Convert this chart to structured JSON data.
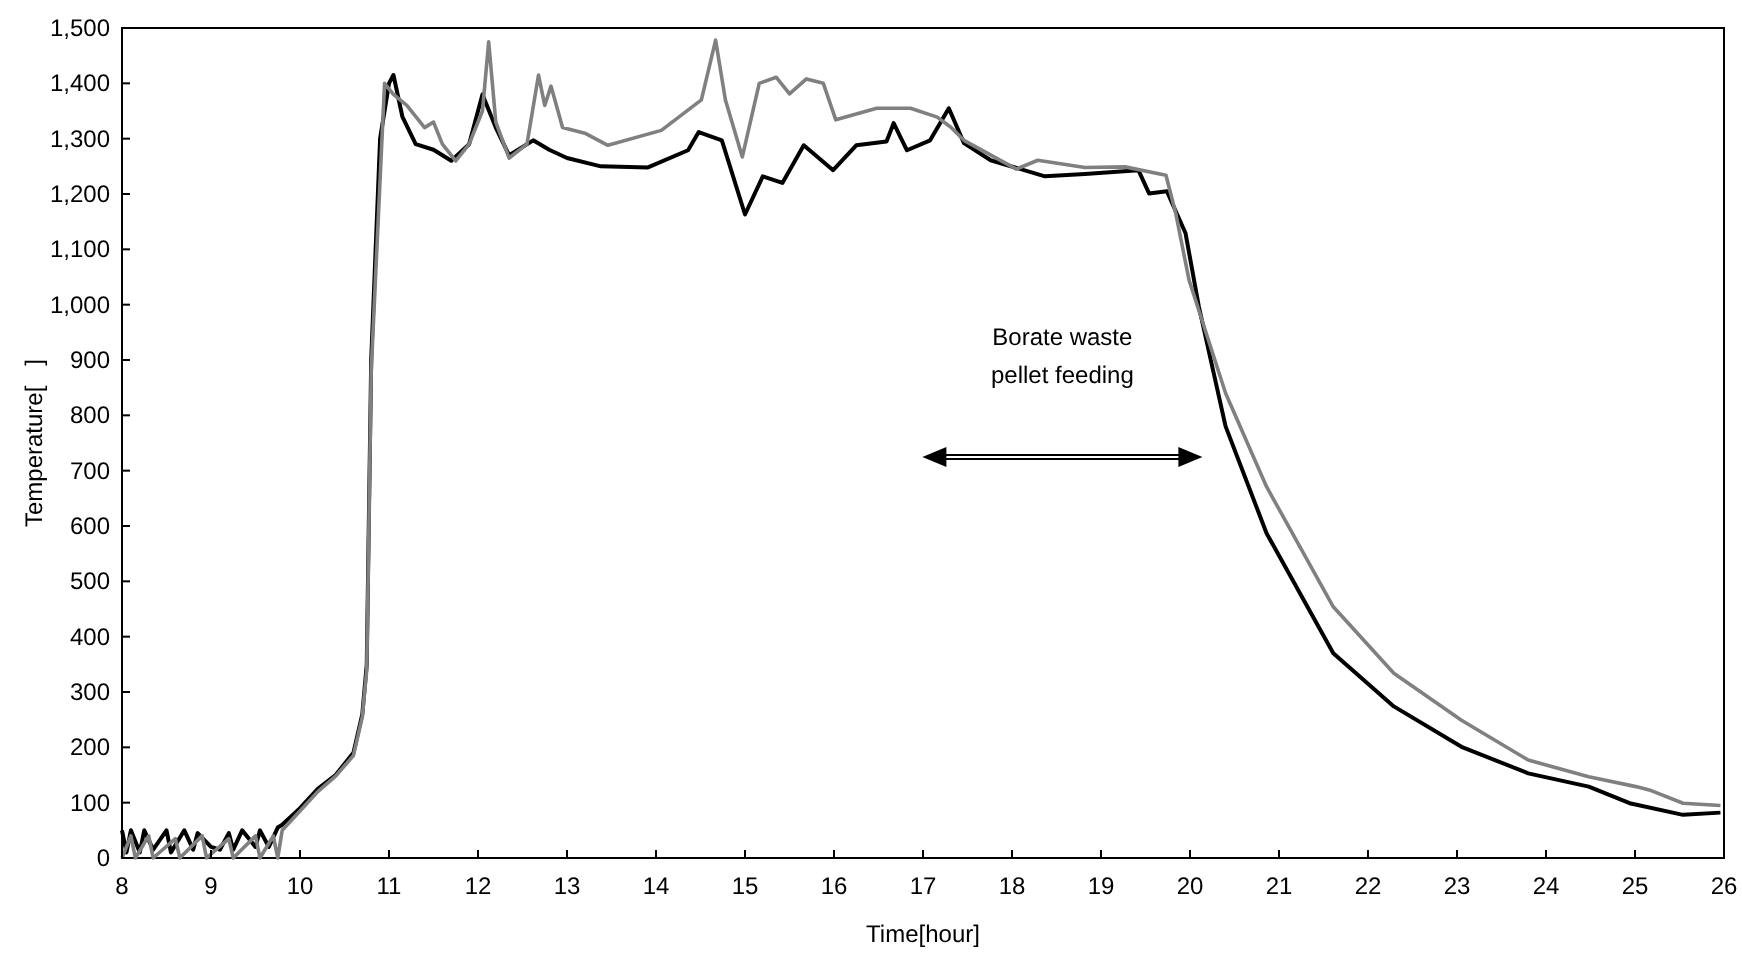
{
  "chart_data": {
    "type": "line",
    "xlabel": "Time[hour]",
    "ylabel": "Temperature[   ]",
    "xlim": [
      8,
      26
    ],
    "xticks": [
      8,
      9,
      10,
      11,
      12,
      13,
      14,
      15,
      16,
      17,
      18,
      19,
      20,
      21,
      22,
      23,
      24,
      25,
      26
    ],
    "ylim": [
      0,
      1500
    ],
    "yticks": [
      0,
      {
        "value": 100,
        "label": "100"
      },
      {
        "value": 200,
        "label": "200"
      },
      {
        "value": 300,
        "label": "300"
      },
      {
        "value": 400,
        "label": "400"
      },
      {
        "value": 500,
        "label": "500"
      },
      {
        "value": 600,
        "label": "600"
      },
      {
        "value": 700,
        "label": "700"
      },
      {
        "value": 800,
        "label": "800"
      },
      {
        "value": 900,
        "label": "900"
      },
      {
        "value": 1000,
        "label": "1,000"
      },
      {
        "value": 1100,
        "label": "1,100"
      },
      {
        "value": 1200,
        "label": "1,200"
      },
      {
        "value": 1300,
        "label": "1,300"
      },
      {
        "value": 1400,
        "label": "1,400"
      },
      {
        "value": 1500,
        "label": "1,500"
      }
    ],
    "grid": false,
    "line_style": "solid",
    "annotations": [
      "Borate waste\npellet feeding"
    ],
    "series": [
      {
        "color": "#000000",
        "x": [
          8,
          8.05,
          8.1,
          8.2,
          8.25,
          8.35,
          8.5,
          8.55,
          8.7,
          8.8,
          8.85,
          9,
          9.1,
          9.2,
          9.25,
          9.35,
          9.5,
          9.55,
          9.65,
          9.75,
          9.8,
          10,
          10.2,
          10.4,
          10.6,
          10.7,
          10.75,
          10.8,
          10.9,
          11,
          11.05,
          11.15,
          11.3,
          11.5,
          11.7,
          11.9,
          12.05,
          12.2,
          12.35,
          12.62,
          12.8,
          13,
          13.38,
          13.91,
          14.36,
          14.48,
          14.74,
          15,
          15.2,
          15.42,
          15.66,
          15.99,
          16.25,
          16.59,
          16.67,
          16.82,
          17.08,
          17.29,
          17.46,
          17.76,
          18.37,
          18.82,
          19.42,
          19.54,
          19.74,
          19.95,
          20.1,
          20.4,
          20.86,
          21.61,
          22.29,
          23.05,
          23.8,
          24.48,
          24.94,
          25.54,
          25.96
        ],
        "values": [
          50,
          10,
          50,
          10,
          50,
          15,
          50,
          10,
          50,
          15,
          45,
          20,
          15,
          45,
          15,
          50,
          20,
          50,
          20,
          55,
          60,
          90,
          125,
          150,
          190,
          260,
          350,
          900,
          1300,
          1400,
          1415,
          1340,
          1290,
          1280,
          1260,
          1290,
          1380,
          1320,
          1270,
          1297,
          1280,
          1265,
          1250,
          1248,
          1279,
          1312,
          1297,
          1163,
          1232,
          1220,
          1288,
          1243,
          1288,
          1295,
          1328,
          1279,
          1297,
          1355,
          1292,
          1261,
          1232,
          1236,
          1243,
          1201,
          1205,
          1129,
          996,
          780,
          587,
          370,
          274,
          201,
          153,
          129,
          99,
          78,
          82
        ]
      },
      {
        "color": "#808080",
        "x": [
          8,
          8.1,
          8.15,
          8.3,
          8.35,
          8.6,
          8.65,
          8.9,
          8.95,
          9.2,
          9.25,
          9.5,
          9.55,
          9.7,
          9.75,
          9.8,
          10,
          10.2,
          10.4,
          10.6,
          10.7,
          10.75,
          10.8,
          10.95,
          11.05,
          11.2,
          11.4,
          11.5,
          11.6,
          11.75,
          11.9,
          12.05,
          12.12,
          12.2,
          12.35,
          12.55,
          12.68,
          12.75,
          12.82,
          12.95,
          13.2,
          13.46,
          14.06,
          14.51,
          14.67,
          14.78,
          14.97,
          15.16,
          15.35,
          15.5,
          15.69,
          15.88,
          16.02,
          16.48,
          16.86,
          17.16,
          17.31,
          17.46,
          18.05,
          18.29,
          18.82,
          19.27,
          19.73,
          19.84,
          19.99,
          20.4,
          20.86,
          21.61,
          22.29,
          23.05,
          23.8,
          24.48,
          25.01,
          25.16,
          25.54,
          25.96
        ],
        "values": [
          0,
          40,
          0,
          40,
          0,
          35,
          0,
          40,
          0,
          35,
          0,
          40,
          0,
          40,
          0,
          50,
          85,
          120,
          148,
          185,
          255,
          340,
          880,
          1400,
          1380,
          1360,
          1320,
          1330,
          1290,
          1260,
          1290,
          1350,
          1475,
          1330,
          1265,
          1290,
          1415,
          1360,
          1395,
          1320,
          1310,
          1288,
          1315,
          1370,
          1478,
          1370,
          1267,
          1400,
          1411,
          1381,
          1408,
          1400,
          1334,
          1355,
          1355,
          1339,
          1321,
          1297,
          1245,
          1261,
          1248,
          1249,
          1234,
          1165,
          1044,
          840,
          671,
          454,
          334,
          249,
          177,
          147,
          129,
          123,
          99,
          95
        ]
      }
    ]
  }
}
